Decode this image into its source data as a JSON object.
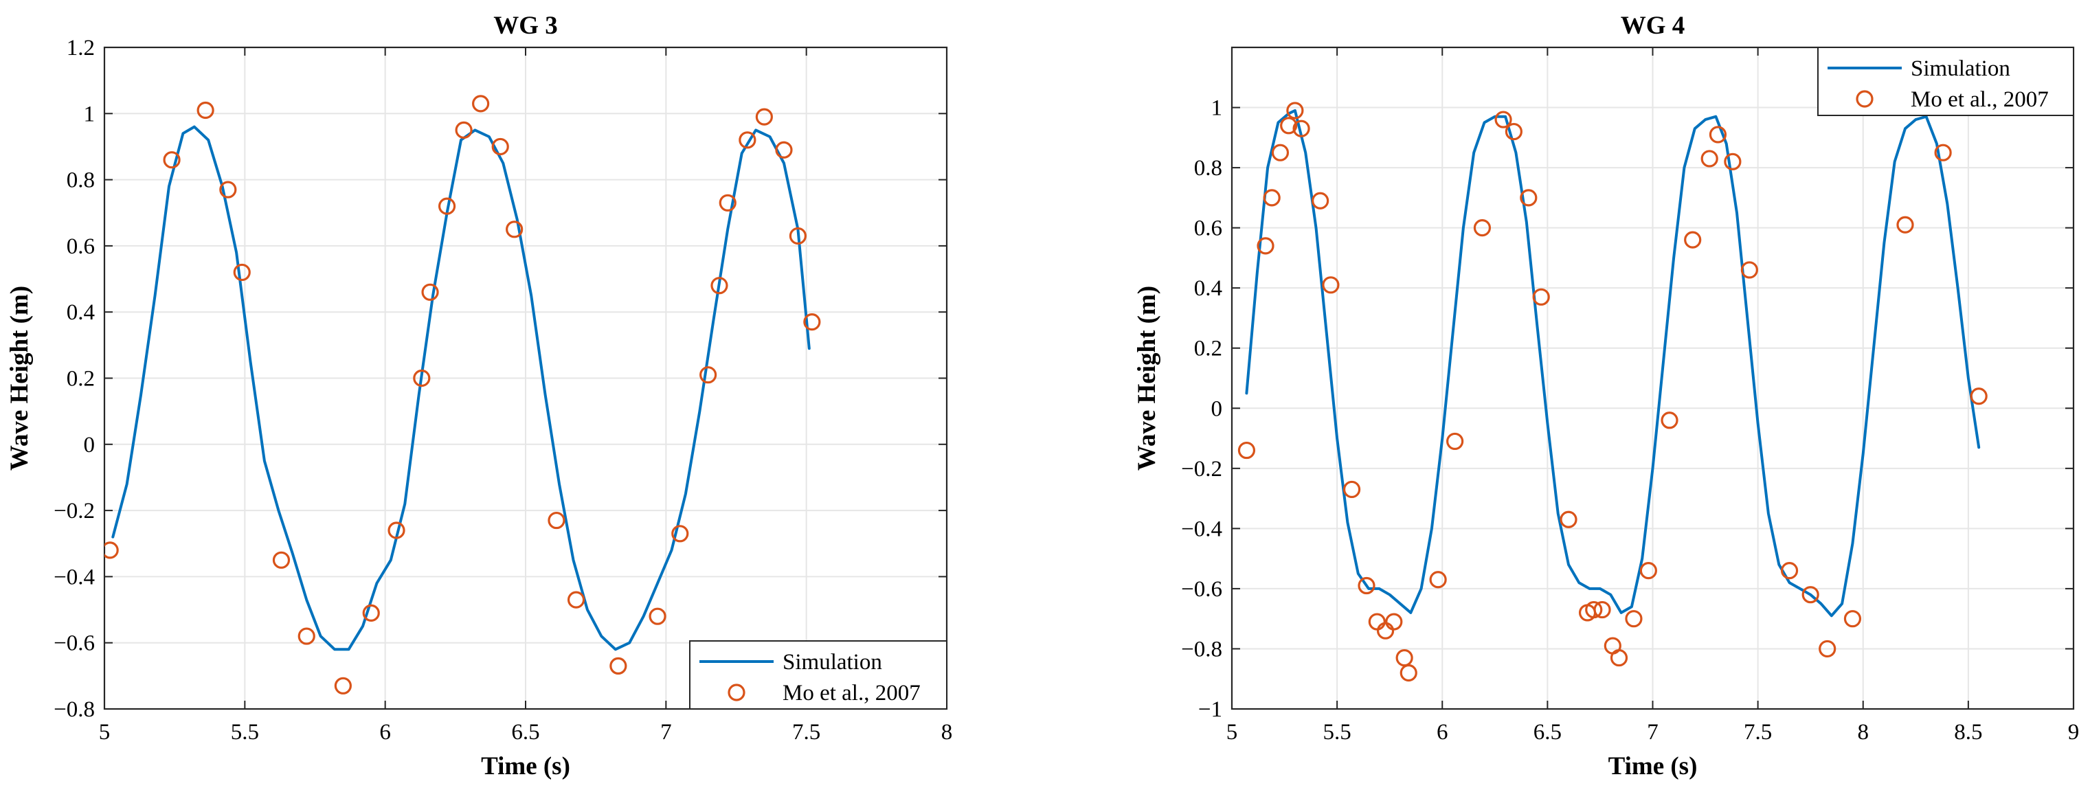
{
  "chart_data": [
    {
      "type": "line",
      "title": "WG 3",
      "xlabel": "Time (s)",
      "ylabel": "Wave Height (m)",
      "xlim": [
        5,
        8
      ],
      "ylim": [
        -0.8,
        1.2
      ],
      "xticks": [
        5,
        5.5,
        6,
        6.5,
        7,
        7.5,
        8
      ],
      "xtick_labels": [
        "5",
        "5.5",
        "6",
        "6.5",
        "7",
        "7.5",
        "8"
      ],
      "yticks": [
        -0.8,
        -0.6,
        -0.4,
        -0.2,
        0,
        0.2,
        0.4,
        0.6,
        0.8,
        1,
        1.2
      ],
      "ytick_labels": [
        "−0.8",
        "−0.6",
        "−0.4",
        "−0.2",
        "0",
        "0.2",
        "0.4",
        "0.6",
        "0.8",
        "1",
        "1.2"
      ],
      "grid": true,
      "legend_position": "bottom-right",
      "series": [
        {
          "name": "Simulation",
          "kind": "line",
          "color": "#0072BD",
          "x": [
            5.03,
            5.08,
            5.13,
            5.18,
            5.23,
            5.28,
            5.32,
            5.37,
            5.42,
            5.47,
            5.52,
            5.57,
            5.62,
            5.67,
            5.72,
            5.77,
            5.82,
            5.87,
            5.92,
            5.97,
            6.02,
            6.07,
            6.12,
            6.17,
            6.22,
            6.27,
            6.32,
            6.37,
            6.42,
            6.47,
            6.52,
            6.57,
            6.62,
            6.67,
            6.72,
            6.77,
            6.82,
            6.87,
            6.92,
            6.97,
            7.02,
            7.07,
            7.12,
            7.17,
            7.22,
            7.27,
            7.32,
            7.37,
            7.42,
            7.47,
            7.51
          ],
          "y": [
            -0.28,
            -0.12,
            0.15,
            0.45,
            0.78,
            0.94,
            0.96,
            0.92,
            0.78,
            0.58,
            0.25,
            -0.05,
            -0.2,
            -0.33,
            -0.47,
            -0.58,
            -0.62,
            -0.62,
            -0.55,
            -0.42,
            -0.35,
            -0.18,
            0.15,
            0.45,
            0.7,
            0.92,
            0.95,
            0.93,
            0.85,
            0.68,
            0.45,
            0.15,
            -0.12,
            -0.35,
            -0.5,
            -0.58,
            -0.62,
            -0.6,
            -0.52,
            -0.42,
            -0.32,
            -0.15,
            0.1,
            0.38,
            0.65,
            0.88,
            0.95,
            0.93,
            0.85,
            0.65,
            0.29
          ]
        },
        {
          "name": "Mo et al., 2007",
          "kind": "scatter",
          "color": "#D95319",
          "x": [
            5.02,
            5.24,
            5.36,
            5.44,
            5.49,
            5.63,
            5.72,
            5.85,
            5.95,
            6.04,
            6.13,
            6.16,
            6.22,
            6.28,
            6.34,
            6.41,
            6.46,
            6.61,
            6.68,
            6.83,
            6.97,
            7.05,
            7.15,
            7.19,
            7.22,
            7.29,
            7.35,
            7.42,
            7.47,
            7.52
          ],
          "y": [
            -0.32,
            0.86,
            1.01,
            0.77,
            0.52,
            -0.35,
            -0.58,
            -0.73,
            -0.51,
            -0.26,
            0.2,
            0.46,
            0.72,
            0.95,
            1.03,
            0.9,
            0.65,
            -0.23,
            -0.47,
            -0.67,
            -0.52,
            -0.27,
            0.21,
            0.48,
            0.73,
            0.92,
            0.99,
            0.89,
            0.63,
            0.37
          ]
        }
      ]
    },
    {
      "type": "line",
      "title": "WG 4",
      "xlabel": "Time (s)",
      "ylabel": "Wave Height (m)",
      "xlim": [
        5,
        9
      ],
      "ylim": [
        -1,
        1.2
      ],
      "xticks": [
        5,
        5.5,
        6,
        6.5,
        7,
        7.5,
        8,
        8.5,
        9
      ],
      "xtick_labels": [
        "5",
        "5.5",
        "6",
        "6.5",
        "7",
        "7.5",
        "8",
        "8.5",
        "9"
      ],
      "yticks": [
        -1,
        -0.8,
        -0.6,
        -0.4,
        -0.2,
        0,
        0.2,
        0.4,
        0.6,
        0.8,
        1
      ],
      "ytick_labels": [
        "−1",
        "−0.8",
        "−0.6",
        "−0.4",
        "−0.2",
        "0",
        "0.2",
        "0.4",
        "0.6",
        "0.8",
        "1"
      ],
      "grid": true,
      "legend_position": "top-right",
      "series": [
        {
          "name": "Simulation",
          "kind": "line",
          "color": "#0072BD",
          "x": [
            5.07,
            5.12,
            5.17,
            5.22,
            5.27,
            5.3,
            5.35,
            5.4,
            5.45,
            5.5,
            5.55,
            5.6,
            5.65,
            5.7,
            5.75,
            5.8,
            5.85,
            5.9,
            5.95,
            6.0,
            6.05,
            6.1,
            6.15,
            6.2,
            6.25,
            6.3,
            6.35,
            6.4,
            6.45,
            6.5,
            6.55,
            6.6,
            6.65,
            6.7,
            6.75,
            6.8,
            6.85,
            6.9,
            6.95,
            7.0,
            7.05,
            7.1,
            7.15,
            7.2,
            7.25,
            7.3,
            7.35,
            7.4,
            7.45,
            7.5,
            7.55,
            7.6,
            7.65,
            7.7,
            7.75,
            7.8,
            7.85,
            7.9,
            7.95,
            8.0,
            8.05,
            8.1,
            8.15,
            8.2,
            8.25,
            8.3,
            8.35,
            8.4,
            8.45,
            8.5,
            8.55
          ],
          "y": [
            0.05,
            0.45,
            0.8,
            0.95,
            0.98,
            0.99,
            0.85,
            0.6,
            0.25,
            -0.1,
            -0.38,
            -0.55,
            -0.6,
            -0.6,
            -0.62,
            -0.65,
            -0.68,
            -0.6,
            -0.4,
            -0.1,
            0.25,
            0.6,
            0.85,
            0.95,
            0.97,
            0.97,
            0.85,
            0.62,
            0.28,
            -0.05,
            -0.35,
            -0.52,
            -0.58,
            -0.6,
            -0.6,
            -0.62,
            -0.68,
            -0.66,
            -0.5,
            -0.2,
            0.15,
            0.5,
            0.8,
            0.93,
            0.96,
            0.97,
            0.88,
            0.65,
            0.3,
            -0.05,
            -0.35,
            -0.52,
            -0.58,
            -0.6,
            -0.62,
            -0.65,
            -0.69,
            -0.65,
            -0.45,
            -0.15,
            0.2,
            0.55,
            0.82,
            0.93,
            0.96,
            0.97,
            0.88,
            0.68,
            0.4,
            0.1,
            -0.13
          ]
        },
        {
          "name": "Mo et al., 2007",
          "kind": "scatter",
          "color": "#D95319",
          "x": [
            5.07,
            5.16,
            5.19,
            5.23,
            5.27,
            5.3,
            5.33,
            5.42,
            5.47,
            5.57,
            5.64,
            5.69,
            5.73,
            5.77,
            5.82,
            5.84,
            5.98,
            6.06,
            6.19,
            6.29,
            6.34,
            6.41,
            6.47,
            6.6,
            6.69,
            6.72,
            6.76,
            6.81,
            6.84,
            6.91,
            6.98,
            7.08,
            7.19,
            7.27,
            7.31,
            7.38,
            7.46,
            7.65,
            7.75,
            7.83,
            7.95,
            8.2,
            8.38,
            8.55
          ],
          "y": [
            -0.14,
            0.54,
            0.7,
            0.85,
            0.94,
            0.99,
            0.93,
            0.69,
            0.41,
            -0.27,
            -0.59,
            -0.71,
            -0.74,
            -0.71,
            -0.83,
            -0.88,
            -0.57,
            -0.11,
            0.6,
            0.96,
            0.92,
            0.7,
            0.37,
            -0.37,
            -0.68,
            -0.67,
            -0.67,
            -0.79,
            -0.83,
            -0.7,
            -0.54,
            -0.04,
            0.56,
            0.83,
            0.91,
            0.82,
            0.46,
            -0.54,
            -0.62,
            -0.8,
            -0.7,
            0.61,
            0.85,
            0.04
          ]
        }
      ]
    }
  ]
}
